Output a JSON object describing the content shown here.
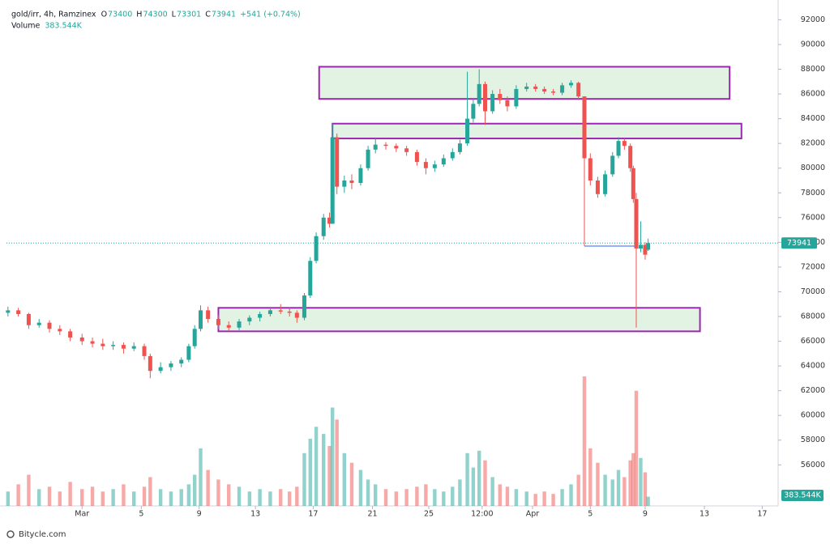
{
  "chart_data": {
    "type": "candlestick",
    "title": "gold/irr, 4h, Ramzinex",
    "ohlc_labels": [
      "O",
      "H",
      "L",
      "C"
    ],
    "change": "+541 (+0.74%)",
    "volume_title": "Volume",
    "volume_label": "383.544K",
    "watermark": "Bitycle.com",
    "up_color": "#26a69a",
    "down_color": "#ef5350",
    "zone_stroke": "#9c27b0",
    "zone_fill": "#d8eed9",
    "line_color": "#2962ff",
    "xlim": [
      -5.1,
      46.7
    ],
    "xticks": [
      {
        "value": 0,
        "label": "Mar"
      },
      {
        "value": 4.0,
        "label": "5"
      },
      {
        "value": 7.9,
        "label": "9"
      },
      {
        "value": 11.7,
        "label": "13"
      },
      {
        "value": 15.6,
        "label": "17"
      },
      {
        "value": 19.6,
        "label": "21"
      },
      {
        "value": 23.4,
        "label": "25"
      },
      {
        "value": 27.0,
        "label": "12:00"
      },
      {
        "value": 30.4,
        "label": "Apr"
      },
      {
        "value": 34.3,
        "label": "5"
      },
      {
        "value": 38.0,
        "label": "9"
      },
      {
        "value": 42.0,
        "label": "13"
      },
      {
        "value": 45.9,
        "label": "17"
      }
    ],
    "ylim": [
      52680,
      93600
    ],
    "yticks": [
      56000,
      58000,
      60000,
      62000,
      64000,
      66000,
      68000,
      70000,
      72000,
      74000,
      76000,
      78000,
      80000,
      82000,
      84000,
      86000,
      88000,
      90000,
      92000
    ],
    "zones": [
      {
        "x": [
          16.0,
          43.7
        ],
        "y": [
          85600,
          88200
        ]
      },
      {
        "x": [
          16.9,
          44.5
        ],
        "y": [
          82400,
          83600
        ]
      },
      {
        "x": [
          9.2,
          41.7
        ],
        "y": [
          66800,
          68700
        ]
      }
    ],
    "lines": [
      {
        "x": [
          33.9,
          37.3
        ],
        "y": 73700
      }
    ],
    "candles": {
      "x": [
        -5.0,
        -4.3,
        -3.6,
        -2.9,
        -2.2,
        -1.5,
        -0.8,
        0,
        0.7,
        1.4,
        2.1,
        2.8,
        3.5,
        4.2,
        4.6,
        5.3,
        6.0,
        6.7,
        7.2,
        7.6,
        8.0,
        8.5,
        9.2,
        9.9,
        10.6,
        11.3,
        12.0,
        12.7,
        13.4,
        14.0,
        14.5,
        15.0,
        15.4,
        15.8,
        16.3,
        16.7,
        16.9,
        17.2,
        17.7,
        18.2,
        18.8,
        19.3,
        19.8,
        20.5,
        21.2,
        21.9,
        22.6,
        23.2,
        23.8,
        24.4,
        25.0,
        25.5,
        26.0,
        26.4,
        26.8,
        27.2,
        27.7,
        28.2,
        28.7,
        29.3,
        30.0,
        30.6,
        31.2,
        31.8,
        32.4,
        33.0,
        33.5,
        33.9,
        34.3,
        34.8,
        35.3,
        35.8,
        36.2,
        36.6,
        37.0,
        37.2,
        37.4,
        37.7,
        38.0,
        38.2
      ],
      "open": [
        68300,
        68500,
        68200,
        67300,
        67500,
        67000,
        66800,
        66300,
        66000,
        65800,
        65600,
        65700,
        65400,
        65600,
        64800,
        63600,
        63900,
        64200,
        64500,
        65600,
        67000,
        68500,
        67800,
        67300,
        67100,
        67600,
        67900,
        68200,
        68500,
        68400,
        68300,
        67900,
        69700,
        72500,
        74500,
        76000,
        75500,
        82500,
        78500,
        79000,
        78800,
        80000,
        81500,
        81900,
        81800,
        81600,
        81300,
        80500,
        80000,
        80300,
        80800,
        81300,
        82000,
        84000,
        85200,
        86800,
        84600,
        86000,
        85500,
        85000,
        86400,
        86600,
        86400,
        86200,
        86100,
        86700,
        86900,
        85800,
        80800,
        79000,
        77900,
        79500,
        81000,
        82200,
        81800,
        80000,
        77500,
        73500,
        73800,
        73400
      ],
      "high": [
        68800,
        68700,
        68300,
        67800,
        67700,
        67300,
        67000,
        66600,
        66300,
        66200,
        66000,
        65900,
        65900,
        65800,
        65000,
        64300,
        64400,
        64700,
        65800,
        67300,
        68900,
        68800,
        68100,
        67600,
        67800,
        68100,
        68400,
        68700,
        69000,
        68700,
        68500,
        69900,
        72800,
        74800,
        76300,
        76400,
        83600,
        82800,
        79400,
        79500,
        80300,
        81800,
        82400,
        82100,
        82000,
        81800,
        81500,
        80800,
        80600,
        81100,
        81600,
        82300,
        87800,
        85600,
        88000,
        87000,
        86300,
        86400,
        85800,
        86700,
        86900,
        86800,
        86600,
        86400,
        86900,
        87100,
        87000,
        85800,
        81200,
        79300,
        79800,
        81300,
        82500,
        82400,
        82000,
        80200,
        78000,
        75700,
        74000,
        74300
      ],
      "low": [
        68000,
        68000,
        67000,
        67100,
        66700,
        66500,
        66000,
        65700,
        65500,
        65300,
        65300,
        65000,
        65200,
        64500,
        63000,
        63400,
        63600,
        63900,
        64300,
        65400,
        66800,
        67500,
        67000,
        66800,
        66900,
        67300,
        67600,
        68000,
        68200,
        68000,
        67500,
        67700,
        69500,
        72300,
        74200,
        75200,
        75500,
        77900,
        78000,
        78300,
        78600,
        79800,
        81200,
        81500,
        81300,
        81000,
        80200,
        79500,
        79700,
        80100,
        80600,
        81100,
        81800,
        83700,
        85000,
        83500,
        84400,
        85200,
        84600,
        84800,
        86200,
        86200,
        86000,
        85900,
        85900,
        86500,
        85500,
        73700,
        78600,
        77600,
        77700,
        79300,
        80800,
        81500,
        79700,
        77200,
        67100,
        73200,
        72600,
        73301
      ],
      "close": [
        68500,
        68200,
        67300,
        67500,
        67000,
        66800,
        66300,
        66000,
        65800,
        65600,
        65700,
        65400,
        65600,
        64800,
        63600,
        63900,
        64200,
        64500,
        65600,
        67000,
        68500,
        67800,
        67300,
        67100,
        67600,
        67900,
        68200,
        68500,
        68400,
        68300,
        67900,
        69700,
        72500,
        74500,
        76000,
        75500,
        82500,
        78500,
        79000,
        78800,
        80000,
        81500,
        81900,
        81800,
        81600,
        81300,
        80500,
        80000,
        80300,
        80800,
        81300,
        82000,
        84000,
        85200,
        86800,
        84600,
        86000,
        85500,
        85000,
        86400,
        86600,
        86400,
        86200,
        86100,
        86700,
        86900,
        85800,
        80800,
        79000,
        77900,
        79500,
        81000,
        82200,
        81800,
        80000,
        77500,
        73500,
        73800,
        73000,
        73941
      ],
      "volume": [
        600000,
        900000,
        1300000,
        700000,
        800000,
        600000,
        1000000,
        700000,
        800000,
        600000,
        700000,
        900000,
        600000,
        800000,
        1200000,
        700000,
        600000,
        700000,
        900000,
        1300000,
        2400000,
        1500000,
        1100000,
        900000,
        800000,
        600000,
        700000,
        600000,
        700000,
        600000,
        800000,
        2200000,
        2800000,
        3300000,
        3000000,
        2500000,
        4100000,
        3600000,
        2200000,
        1800000,
        1500000,
        1100000,
        900000,
        700000,
        600000,
        700000,
        800000,
        900000,
        700000,
        600000,
        800000,
        1100000,
        2200000,
        1600000,
        2300000,
        1900000,
        1200000,
        900000,
        800000,
        700000,
        600000,
        500000,
        600000,
        500000,
        700000,
        900000,
        1300000,
        5400000,
        2400000,
        1800000,
        1300000,
        1100000,
        1500000,
        1200000,
        1900000,
        2200000,
        4800000,
        2000000,
        1400000,
        383544
      ]
    }
  }
}
